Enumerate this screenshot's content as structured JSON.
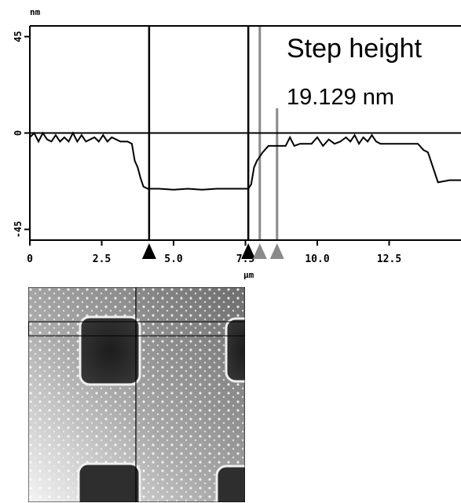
{
  "chart_data": {
    "type": "line",
    "title": "",
    "xlabel": "μm",
    "ylabel": "nm",
    "xlim": [
      0,
      15
    ],
    "ylim": [
      -50,
      50
    ],
    "x_ticks": [
      0,
      2.5,
      5.0,
      7.5,
      10.0,
      12.5
    ],
    "x_tick_labels": [
      "0",
      "2.5",
      "5.0",
      "7.5",
      "10.0",
      "12.5"
    ],
    "y_ticks": [
      45,
      0,
      -45
    ],
    "y_tick_labels": [
      "45",
      "0",
      "-45"
    ],
    "series": [
      {
        "x": [
          0,
          0.15,
          0.3,
          0.45,
          0.6,
          0.75,
          0.9,
          1.05,
          1.2,
          1.35,
          1.5,
          1.65,
          1.8,
          1.95,
          2.1,
          2.25,
          2.4,
          2.55,
          2.7,
          2.85,
          3.0,
          3.15,
          3.3,
          3.4,
          3.55,
          3.65,
          3.75,
          3.85,
          3.95,
          4.1,
          4.5,
          5.0,
          5.5,
          6.0,
          6.5,
          7.0,
          7.5,
          7.6,
          7.7,
          7.8,
          7.9,
          8.0,
          8.1,
          8.3,
          8.6,
          8.9,
          9.05,
          9.2,
          9.4,
          9.6,
          9.8,
          10.0,
          10.2,
          10.4,
          10.6,
          10.8,
          11.0,
          11.15,
          11.3,
          11.45,
          11.6,
          11.75,
          11.9,
          12.05,
          12.2,
          12.5,
          12.9,
          13.2,
          13.5,
          13.7,
          13.85,
          14.0,
          14.2,
          14.6,
          15.0
        ],
        "y": [
          -2,
          0,
          -4,
          0,
          -3,
          -4,
          -1,
          -4,
          -2,
          -4,
          0,
          -4,
          -1,
          -4,
          -3,
          -2,
          -4,
          -1,
          -4,
          -2,
          -3,
          -4,
          -4,
          -4,
          -5,
          -13,
          -16,
          -21,
          -25,
          -26,
          -26,
          -26.5,
          -26,
          -26.5,
          -26,
          -26,
          -26,
          -26,
          -24,
          -16,
          -13,
          -11,
          -9,
          -6,
          -6,
          -6,
          -2,
          -6,
          -5,
          -5,
          -5,
          -2,
          -6,
          -3,
          -5,
          -4,
          -2,
          -4,
          -1,
          -5,
          -2,
          -4,
          -1,
          -4,
          -5,
          -5,
          -5,
          -5,
          -5,
          -8,
          -9,
          -15,
          -23,
          -22,
          -22
        ]
      }
    ],
    "cursors_black_x": [
      4.15,
      7.6
    ],
    "cursors_gray_x": [
      8.0,
      8.6
    ],
    "hline_y": 0,
    "colors": {
      "black_cursor": "#000000",
      "gray_cursor": "#8a8a8a",
      "line": "#000000"
    }
  },
  "annotation": {
    "label": "Step height",
    "value": "19.129 nm"
  }
}
